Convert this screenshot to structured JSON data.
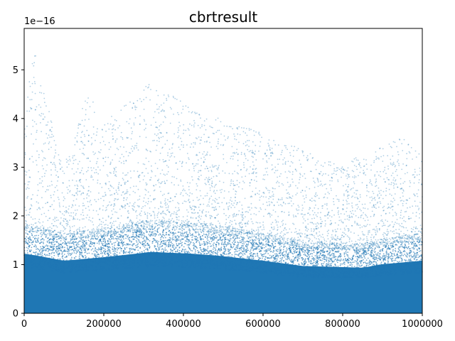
{
  "chart_data": {
    "type": "scatter",
    "title": "cbrtresult",
    "xlabel": "",
    "ylabel": "",
    "y_offset_text": "1e−16",
    "xlim": [
      0,
      1000000
    ],
    "ylim": [
      0,
      5.85
    ],
    "x_ticks": [
      0,
      200000,
      400000,
      600000,
      800000,
      1000000
    ],
    "x_tick_labels": [
      "0",
      "200000",
      "400000",
      "600000",
      "800000",
      "1000000"
    ],
    "y_ticks": [
      0,
      1,
      2,
      3,
      4,
      5
    ],
    "y_tick_labels": [
      "0",
      "1",
      "2",
      "3",
      "4",
      "5"
    ],
    "grid": false,
    "point_color": "#1f77b4",
    "dense_band_upper_y": [
      [
        0,
        1.7
      ],
      [
        30000,
        1.65
      ],
      [
        100000,
        1.5
      ],
      [
        200000,
        1.6
      ],
      [
        320000,
        1.75
      ],
      [
        420000,
        1.7
      ],
      [
        480000,
        1.65
      ],
      [
        600000,
        1.5
      ],
      [
        700000,
        1.35
      ],
      [
        850000,
        1.3
      ],
      [
        900000,
        1.4
      ],
      [
        1000000,
        1.5
      ]
    ],
    "sparse_envelope_y": [
      [
        0,
        4.2
      ],
      [
        30000,
        5.6
      ],
      [
        50000,
        4.6
      ],
      [
        80000,
        3.6
      ],
      [
        100000,
        3.0
      ],
      [
        160000,
        4.6
      ],
      [
        200000,
        3.9
      ],
      [
        320000,
        4.8
      ],
      [
        420000,
        4.2
      ],
      [
        600000,
        3.7
      ],
      [
        800000,
        3.0
      ],
      [
        850000,
        3.3
      ],
      [
        950000,
        3.6
      ],
      [
        1000000,
        3.3
      ]
    ]
  }
}
